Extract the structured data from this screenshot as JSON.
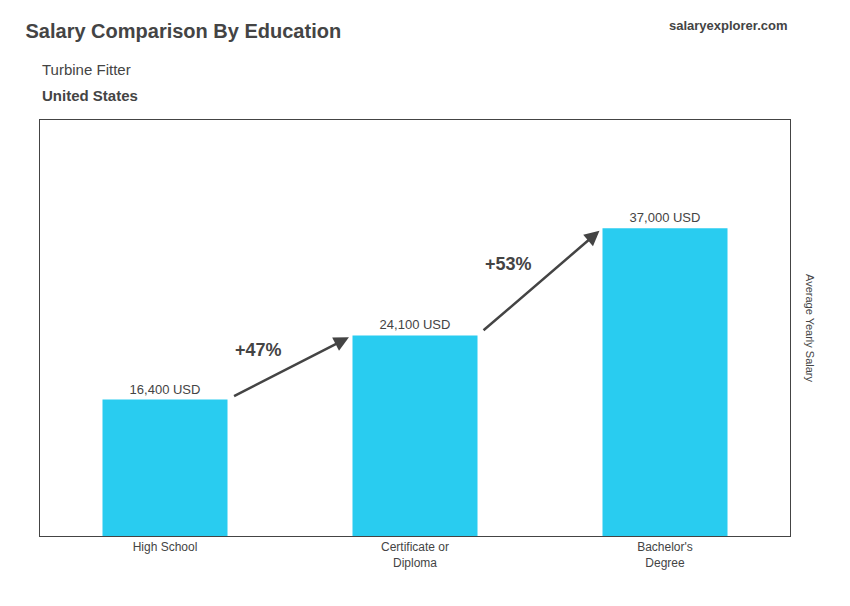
{
  "chart_data": {
    "type": "bar",
    "title": "Salary Comparison By Education",
    "subtitle": [
      "Turbine Fitter",
      "United States"
    ],
    "brand": [
      "salary",
      "explorer",
      ".com"
    ],
    "ylabel": "Average Yearly Salary",
    "categories": [
      "High School",
      "Certificate or\nDiploma",
      "Bachelor's\nDegree"
    ],
    "values": [
      16400,
      24100,
      37000
    ],
    "value_labels": [
      "16,400 USD",
      "24,100 USD",
      "37,000 USD"
    ],
    "data_labels": true,
    "annotations": [
      "+47%",
      "+53%"
    ],
    "color": "#29ccf0",
    "ylim": [
      0,
      50000
    ],
    "grid": false,
    "tick_labels": "x"
  }
}
